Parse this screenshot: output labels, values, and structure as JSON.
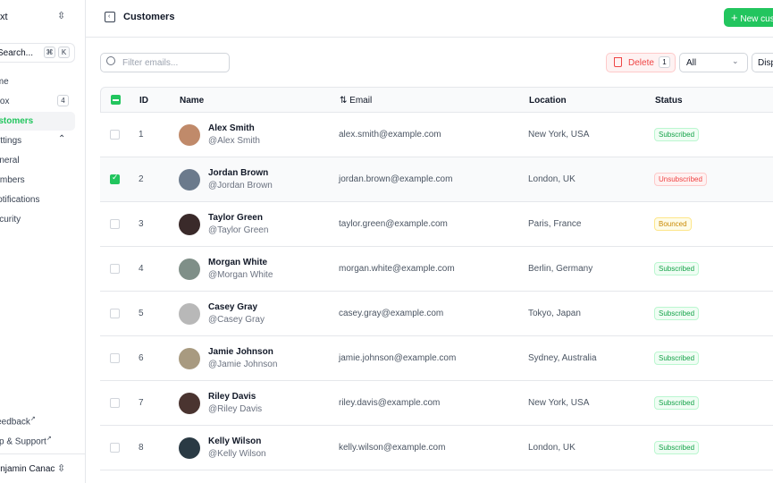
{
  "sidebar": {
    "team": "Nuxt",
    "search": "Search...",
    "kbd": [
      "⌘",
      "K"
    ],
    "items": [
      {
        "label": "Home"
      },
      {
        "label": "Inbox",
        "badge": "4"
      },
      {
        "label": "Customers"
      },
      {
        "label": "Settings"
      }
    ],
    "sub_items": [
      {
        "label": "General"
      },
      {
        "label": "Members"
      },
      {
        "label": "Notifications"
      },
      {
        "label": "Security"
      }
    ],
    "footer_links": [
      {
        "label": "Feedback"
      },
      {
        "label": "Help & Support"
      }
    ],
    "user": "Benjamin Canac"
  },
  "header": {
    "title": "Customers",
    "new_button": "New customer"
  },
  "toolbar": {
    "filter_placeholder": "Filter emails...",
    "delete_label": "Delete",
    "delete_count": "1",
    "status_select": "All",
    "display_button": "Display"
  },
  "table": {
    "columns": [
      "ID",
      "Name",
      "Email",
      "Location",
      "Status"
    ],
    "rows": [
      {
        "id": "1",
        "name": "Alex Smith",
        "handle": "@Alex Smith",
        "email": "alex.smith@example.com",
        "location": "New York, USA",
        "status": "Subscribed",
        "selected": false,
        "avatar": "#c08a6a"
      },
      {
        "id": "2",
        "name": "Jordan Brown",
        "handle": "@Jordan Brown",
        "email": "jordan.brown@example.com",
        "location": "London, UK",
        "status": "Unsubscribed",
        "selected": true,
        "avatar": "#6b7a8c"
      },
      {
        "id": "3",
        "name": "Taylor Green",
        "handle": "@Taylor Green",
        "email": "taylor.green@example.com",
        "location": "Paris, France",
        "status": "Bounced",
        "selected": false,
        "avatar": "#3a2a2a"
      },
      {
        "id": "4",
        "name": "Morgan White",
        "handle": "@Morgan White",
        "email": "morgan.white@example.com",
        "location": "Berlin, Germany",
        "status": "Subscribed",
        "selected": false,
        "avatar": "#7f8f88"
      },
      {
        "id": "5",
        "name": "Casey Gray",
        "handle": "@Casey Gray",
        "email": "casey.gray@example.com",
        "location": "Tokyo, Japan",
        "status": "Subscribed",
        "selected": false,
        "avatar": "#b8b8b8"
      },
      {
        "id": "6",
        "name": "Jamie Johnson",
        "handle": "@Jamie Johnson",
        "email": "jamie.johnson@example.com",
        "location": "Sydney, Australia",
        "status": "Subscribed",
        "selected": false,
        "avatar": "#a89a80"
      },
      {
        "id": "7",
        "name": "Riley Davis",
        "handle": "@Riley Davis",
        "email": "riley.davis@example.com",
        "location": "New York, USA",
        "status": "Subscribed",
        "selected": false,
        "avatar": "#4a3430"
      },
      {
        "id": "8",
        "name": "Kelly Wilson",
        "handle": "@Kelly Wilson",
        "email": "kelly.wilson@example.com",
        "location": "London, UK",
        "status": "Subscribed",
        "selected": false,
        "avatar": "#2a3a44"
      }
    ]
  },
  "colors": {
    "accent": "#22c55e",
    "danger": "#ef4444",
    "warning": "#eab308"
  }
}
